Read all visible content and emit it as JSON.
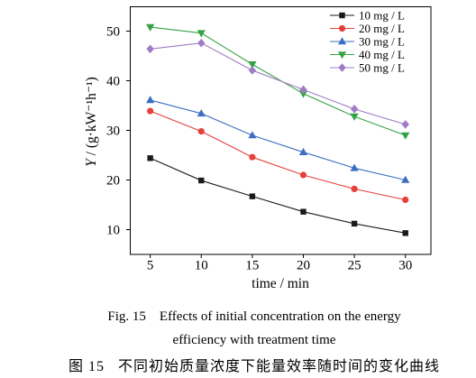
{
  "chart_data": {
    "type": "line",
    "xlabel": "time / min",
    "ylabel": "Y / (g·kW⁻¹h⁻¹)",
    "x": [
      5,
      10,
      15,
      20,
      25,
      30
    ],
    "x_ticks": [
      5,
      10,
      15,
      20,
      25,
      30
    ],
    "y_ticks": [
      10,
      20,
      30,
      40,
      50
    ],
    "xlim": [
      3,
      32.5
    ],
    "ylim": [
      5,
      55
    ],
    "grid": false,
    "legend_position": "top-right",
    "series": [
      {
        "name": "10 mg / L",
        "color": "#1a1a1a",
        "marker": "square",
        "values": [
          24.4,
          19.9,
          16.7,
          13.6,
          11.2,
          9.3
        ]
      },
      {
        "name": "20 mg / L",
        "color": "#e5403b",
        "marker": "circle",
        "values": [
          33.9,
          29.8,
          24.6,
          21.0,
          18.2,
          16.0
        ]
      },
      {
        "name": "30 mg / L",
        "color": "#3b6fc1",
        "marker": "triangle-up",
        "values": [
          36.1,
          33.4,
          29.0,
          25.6,
          22.4,
          20.0
        ]
      },
      {
        "name": "40 mg / L",
        "color": "#35a343",
        "marker": "triangle-down",
        "values": [
          50.8,
          49.6,
          43.3,
          37.4,
          32.8,
          29.0
        ]
      },
      {
        "name": "50 mg / L",
        "color": "#a07cc8",
        "marker": "diamond",
        "values": [
          46.4,
          47.6,
          42.1,
          38.2,
          34.3,
          31.2
        ]
      }
    ]
  },
  "caption": {
    "en_label": "Fig. 15",
    "en_line1": "Effects of initial concentration on the energy",
    "en_line2": "efficiency with treatment time",
    "zh_label": "图 15",
    "zh_text": "不同初始质量浓度下能量效率随时间的变化曲线"
  }
}
